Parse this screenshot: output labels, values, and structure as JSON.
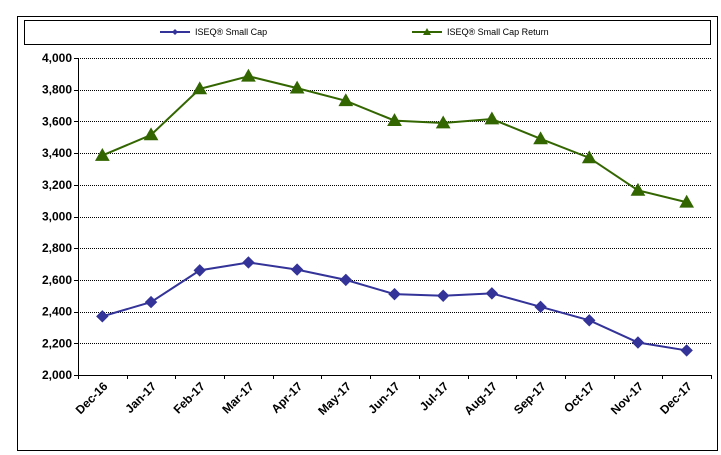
{
  "chart_data": {
    "type": "line",
    "categories": [
      "Dec-16",
      "Jan-17",
      "Feb-17",
      "Mar-17",
      "Apr-17",
      "May-17",
      "Jun-17",
      "Jul-17",
      "Aug-17",
      "Sep-17",
      "Oct-17",
      "Nov-17",
      "Dec-17"
    ],
    "series": [
      {
        "name": "ISEQ® Small Cap",
        "color": "#333399",
        "marker": "diamond",
        "values": [
          2370,
          2460,
          2660,
          2710,
          2665,
          2600,
          2510,
          2500,
          2515,
          2430,
          2345,
          2205,
          2155
        ]
      },
      {
        "name": "ISEQ® Small Cap Return",
        "color": "#336600",
        "marker": "triangle",
        "values": [
          3385,
          3515,
          3805,
          3885,
          3810,
          3730,
          3605,
          3590,
          3615,
          3490,
          3370,
          3165,
          3090
        ]
      }
    ],
    "yticks": [
      "2,000",
      "2,200",
      "2,400",
      "2,600",
      "2,800",
      "3,000",
      "3,200",
      "3,400",
      "3,600",
      "3,800",
      "4,000"
    ],
    "ylim": [
      2000,
      4000
    ],
    "grid": true,
    "legend_position": "top"
  }
}
